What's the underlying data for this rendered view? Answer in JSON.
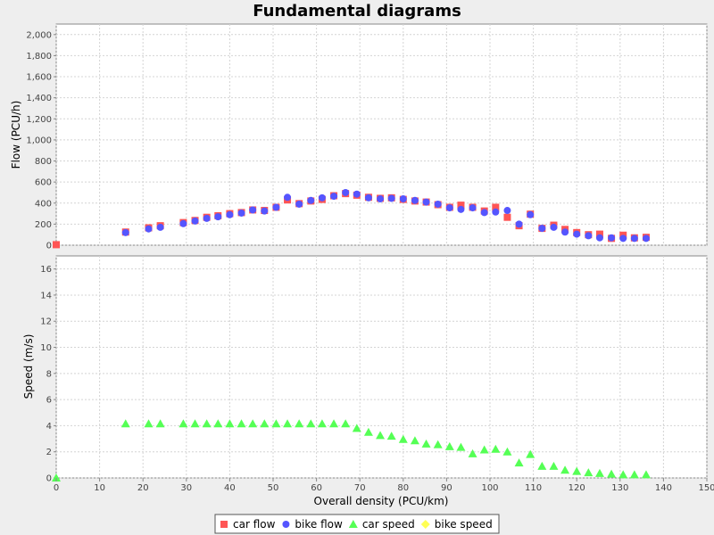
{
  "chart_data": {
    "type": "scatter",
    "title": "Fundamental diagrams",
    "xlabel": "Overall density (PCU/km)",
    "xlim": [
      0,
      150
    ],
    "xticks": [
      0,
      10,
      20,
      30,
      40,
      50,
      60,
      70,
      80,
      90,
      100,
      110,
      120,
      130,
      140,
      150
    ],
    "grid": true,
    "legend_position": "bottom",
    "subplots": [
      {
        "ylabel": "Flow (PCU/h)",
        "ylim": [
          0,
          2100
        ],
        "yticks": [
          0,
          200,
          400,
          600,
          800,
          1000,
          1200,
          1400,
          1600,
          1800,
          2000
        ],
        "ytick_labels": [
          "0",
          "200",
          "400",
          "600",
          "800",
          "1,000",
          "1,200",
          "1,400",
          "1,600",
          "1,800",
          "2,000"
        ],
        "series": [
          {
            "name": "car flow",
            "color": "#ff5555",
            "marker": "square",
            "points": [
              [
                0,
                5
              ],
              [
                16,
                125
              ],
              [
                21.3,
                165
              ],
              [
                24,
                185
              ],
              [
                29.3,
                215
              ],
              [
                32,
                235
              ],
              [
                34.7,
                265
              ],
              [
                37.3,
                280
              ],
              [
                40,
                300
              ],
              [
                42.7,
                310
              ],
              [
                45.3,
                335
              ],
              [
                48,
                330
              ],
              [
                50.7,
                360
              ],
              [
                53.3,
                430
              ],
              [
                56,
                395
              ],
              [
                58.7,
                420
              ],
              [
                61.3,
                435
              ],
              [
                64,
                470
              ],
              [
                66.7,
                490
              ],
              [
                69.3,
                475
              ],
              [
                72,
                455
              ],
              [
                74.7,
                445
              ],
              [
                77.3,
                450
              ],
              [
                80,
                435
              ],
              [
                82.7,
                420
              ],
              [
                85.3,
                410
              ],
              [
                88,
                385
              ],
              [
                90.7,
                360
              ],
              [
                93.3,
                380
              ],
              [
                96,
                360
              ],
              [
                98.7,
                325
              ],
              [
                101.3,
                360
              ],
              [
                104,
                265
              ],
              [
                106.7,
                185
              ],
              [
                109.3,
                295
              ],
              [
                112,
                160
              ],
              [
                114.7,
                190
              ],
              [
                117.3,
                150
              ],
              [
                120,
                120
              ],
              [
                122.7,
                100
              ],
              [
                125.3,
                105
              ],
              [
                128,
                65
              ],
              [
                130.7,
                95
              ],
              [
                133.3,
                70
              ],
              [
                136,
                75
              ]
            ]
          },
          {
            "name": "bike flow",
            "color": "#5555ff",
            "marker": "circle",
            "points": [
              [
                16,
                120
              ],
              [
                21.3,
                155
              ],
              [
                24,
                170
              ],
              [
                29.3,
                205
              ],
              [
                32,
                230
              ],
              [
                34.7,
                255
              ],
              [
                37.3,
                270
              ],
              [
                40,
                290
              ],
              [
                42.7,
                305
              ],
              [
                45.3,
                335
              ],
              [
                48,
                325
              ],
              [
                50.7,
                360
              ],
              [
                53.3,
                455
              ],
              [
                56,
                390
              ],
              [
                58.7,
                425
              ],
              [
                61.3,
                450
              ],
              [
                64,
                465
              ],
              [
                66.7,
                500
              ],
              [
                69.3,
                485
              ],
              [
                72,
                450
              ],
              [
                74.7,
                440
              ],
              [
                77.3,
                445
              ],
              [
                80,
                440
              ],
              [
                82.7,
                425
              ],
              [
                85.3,
                410
              ],
              [
                88,
                390
              ],
              [
                90.7,
                355
              ],
              [
                93.3,
                340
              ],
              [
                96,
                355
              ],
              [
                98.7,
                310
              ],
              [
                101.3,
                315
              ],
              [
                104,
                330
              ],
              [
                106.7,
                200
              ],
              [
                109.3,
                290
              ],
              [
                112,
                160
              ],
              [
                114.7,
                170
              ],
              [
                117.3,
                125
              ],
              [
                120,
                105
              ],
              [
                122.7,
                90
              ],
              [
                125.3,
                70
              ],
              [
                128,
                70
              ],
              [
                130.7,
                65
              ],
              [
                133.3,
                65
              ],
              [
                136,
                65
              ]
            ]
          }
        ]
      },
      {
        "ylabel": "Speed (m/s)",
        "ylim": [
          0,
          17
        ],
        "yticks": [
          0,
          2,
          4,
          6,
          8,
          10,
          12,
          14,
          16
        ],
        "ytick_labels": [
          "0",
          "2",
          "4",
          "6",
          "8",
          "10",
          "12",
          "14",
          "16"
        ],
        "series": [
          {
            "name": "car speed",
            "color": "#55ff55",
            "marker": "triangle",
            "points": [
              [
                0,
                0
              ],
              [
                16,
                4.15
              ],
              [
                21.3,
                4.15
              ],
              [
                24,
                4.15
              ],
              [
                29.3,
                4.15
              ],
              [
                32,
                4.15
              ],
              [
                34.7,
                4.15
              ],
              [
                37.3,
                4.15
              ],
              [
                40,
                4.15
              ],
              [
                42.7,
                4.15
              ],
              [
                45.3,
                4.15
              ],
              [
                48,
                4.15
              ],
              [
                50.7,
                4.15
              ],
              [
                53.3,
                4.15
              ],
              [
                56,
                4.15
              ],
              [
                58.7,
                4.15
              ],
              [
                61.3,
                4.15
              ],
              [
                64,
                4.15
              ],
              [
                66.7,
                4.15
              ],
              [
                69.3,
                3.8
              ],
              [
                72,
                3.5
              ],
              [
                74.7,
                3.25
              ],
              [
                77.3,
                3.2
              ],
              [
                80,
                2.95
              ],
              [
                82.7,
                2.85
              ],
              [
                85.3,
                2.6
              ],
              [
                88,
                2.55
              ],
              [
                90.7,
                2.4
              ],
              [
                93.3,
                2.35
              ],
              [
                96,
                1.85
              ],
              [
                98.7,
                2.15
              ],
              [
                101.3,
                2.2
              ],
              [
                104,
                2.0
              ],
              [
                106.7,
                1.15
              ],
              [
                109.3,
                1.8
              ],
              [
                112,
                0.9
              ],
              [
                114.7,
                0.9
              ],
              [
                117.3,
                0.6
              ],
              [
                120,
                0.5
              ],
              [
                122.7,
                0.4
              ],
              [
                125.3,
                0.35
              ],
              [
                128,
                0.3
              ],
              [
                130.7,
                0.25
              ],
              [
                133.3,
                0.25
              ],
              [
                136,
                0.25
              ]
            ]
          },
          {
            "name": "bike speed",
            "color": "#ffff55",
            "marker": "diamond",
            "points": []
          }
        ]
      }
    ]
  }
}
